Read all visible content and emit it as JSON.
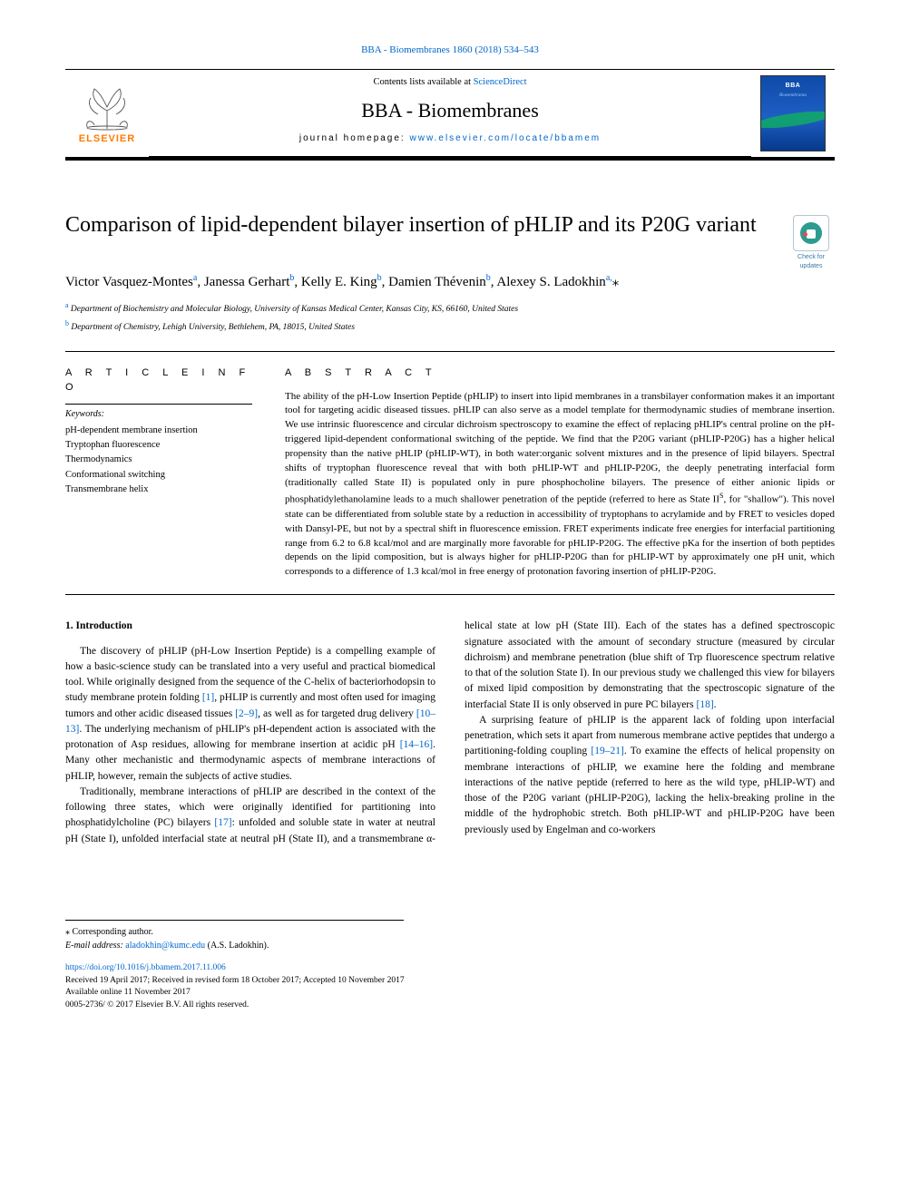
{
  "journal_ref": {
    "name": "BBA - Biomembranes",
    "vol": "1860 (2018) 534–543"
  },
  "header": {
    "contents_prefix": "Contents lists available at ",
    "contents_link": "ScienceDirect",
    "journal": "BBA - Biomembranes",
    "home_prefix": "journal homepage: ",
    "home_link": "www.elsevier.com/locate/bbamem",
    "publisher": "ELSEVIER",
    "cover_title": "BBA",
    "cover_sub": "Biomembranes"
  },
  "updates_badge": "Check for updates",
  "title": "Comparison of lipid-dependent bilayer insertion of pHLIP and its P20G variant",
  "authors_html": "Victor Vasquez-Montes<sup>a</sup>, Janessa Gerhart<sup>b</sup>, Kelly E. King<sup>b</sup>, Damien Thévenin<sup>b</sup>, Alexey S. Ladokhin<sup>a,</sup>⁎",
  "affiliations": [
    {
      "mark": "a",
      "text": "Department of Biochemistry and Molecular Biology, University of Kansas Medical Center, Kansas City, KS, 66160, United States"
    },
    {
      "mark": "b",
      "text": "Department of Chemistry, Lehigh University, Bethlehem, PA, 18015, United States"
    }
  ],
  "article_info": {
    "label": "A R T I C L E  I N F O",
    "keywords_h": "Keywords:",
    "keywords": [
      "pH-dependent membrane insertion",
      "Tryptophan fluorescence",
      "Thermodynamics",
      "Conformational switching",
      "Transmembrane helix"
    ]
  },
  "abstract": {
    "label": "A B S T R A C T",
    "text": "The ability of the pH-Low Insertion Peptide (pHLIP) to insert into lipid membranes in a transbilayer conformation makes it an important tool for targeting acidic diseased tissues. pHLIP can also serve as a model template for thermodynamic studies of membrane insertion. We use intrinsic fluorescence and circular dichroism spectroscopy to examine the effect of replacing pHLIP's central proline on the pH-triggered lipid-dependent conformational switching of the peptide. We find that the P20G variant (pHLIP-P20G) has a higher helical propensity than the native pHLIP (pHLIP-WT), in both water:organic solvent mixtures and in the presence of lipid bilayers. Spectral shifts of tryptophan fluorescence reveal that with both pHLIP-WT and pHLIP-P20G, the deeply penetrating interfacial form (traditionally called State II) is populated only in pure phosphocholine bilayers. The presence of either anionic lipids or phosphatidylethanolamine leads to a much shallower penetration of the peptide (referred to here as State IIS, for \"shallow\"). This novel state can be differentiated from soluble state by a reduction in accessibility of tryptophans to acrylamide and by FRET to vesicles doped with Dansyl-PE, but not by a spectral shift in fluorescence emission. FRET experiments indicate free energies for interfacial partitioning range from 6.2 to 6.8 kcal/mol and are marginally more favorable for pHLIP-P20G. The effective pKa for the insertion of both peptides depends on the lipid composition, but is always higher for pHLIP-P20G than for pHLIP-WT by approximately one pH unit, which corresponds to a difference of 1.3 kcal/mol in free energy of protonation favoring insertion of pHLIP-P20G."
  },
  "intro_heading": "1. Introduction",
  "intro_paragraphs": [
    "The discovery of pHLIP (pH-Low Insertion Peptide) is a compelling example of how a basic-science study can be translated into a very useful and practical biomedical tool. While originally designed from the sequence of the C-helix of bacteriorhodopsin to study membrane protein folding [1], pHLIP is currently and most often used for imaging tumors and other acidic diseased tissues [2–9], as well as for targeted drug delivery [10–13]. The underlying mechanism of pHLIP's pH-dependent action is associated with the protonation of Asp residues, allowing for membrane insertion at acidic pH [14–16]. Many other mechanistic and thermodynamic aspects of membrane interactions of pHLIP, however, remain the subjects of active studies.",
    "Traditionally, membrane interactions of pHLIP are described in the context of the following three states, which were originally identified for partitioning into phosphatidylcholine (PC) bilayers [17]: unfolded and soluble state in water at neutral pH (State I), unfolded interfacial state at neutral pH (State II), and a transmembrane α-helical state at low pH (State III). Each of the states has a defined spectroscopic signature associated with the amount of secondary structure (measured by circular dichroism) and membrane penetration (blue shift of Trp fluorescence spectrum relative to that of the solution State I). In our previous study we challenged this view for bilayers of mixed lipid composition by demonstrating that the spectroscopic signature of the interfacial State II is only observed in pure PC bilayers [18].",
    "A surprising feature of pHLIP is the apparent lack of folding upon interfacial penetration, which sets it apart from numerous membrane active peptides that undergo a partitioning-folding coupling [19–21]. To examine the effects of helical propensity on membrane interactions of pHLIP, we examine here the folding and membrane interactions of the native peptide (referred to here as the wild type, pHLIP-WT) and those of the P20G variant (pHLIP-P20G), lacking the helix-breaking proline in the middle of the hydrophobic stretch. Both pHLIP-WT and pHLIP-P20G have been previously used by Engelman and co-workers"
  ],
  "ref_spans": {
    "r1": "[1]",
    "r2_9": "[2–9]",
    "r10_13": "[10–13]",
    "r14_16": "[14–16]",
    "r17": "[17]",
    "r18": "[18]",
    "r19_21": "[19–21]"
  },
  "footnotes": {
    "corr": "⁎ Corresponding author.",
    "email_label": "E-mail address: ",
    "email": "aladokhin@kumc.edu",
    "email_name": " (A.S. Ladokhin)."
  },
  "pubmeta": {
    "doi": "https://doi.org/10.1016/j.bbamem.2017.11.006",
    "received": "Received 19 April 2017; Received in revised form 18 October 2017; Accepted 10 November 2017",
    "online": "Available online 11 November 2017",
    "issn": "0005-2736/ © 2017 Elsevier B.V. All rights reserved."
  },
  "colors": {
    "link": "#0066cc",
    "elsevier_orange": "#ff7a00",
    "cover_blue_top": "#0f4aa8",
    "cover_blue_bot": "#063a8c",
    "badge_teal": "#2e9b8f",
    "badge_red": "#d9534f"
  }
}
